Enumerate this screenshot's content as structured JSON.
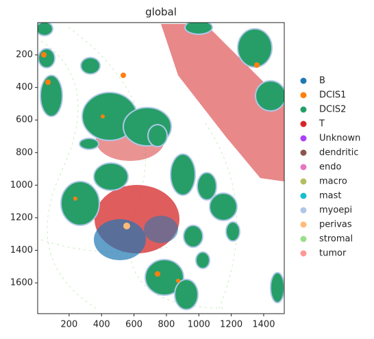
{
  "chart_data": {
    "type": "scatter",
    "title": "global",
    "xlim": [
      6,
      1527
    ],
    "xticks": [
      200,
      400,
      600,
      800,
      1000,
      1200,
      1400
    ],
    "ylim": [
      1789,
      2
    ],
    "yticks": [
      200,
      400,
      600,
      800,
      1000,
      1200,
      1400,
      1600
    ],
    "legend": "right",
    "series": [
      {
        "name": "B",
        "color": "#1f77b4"
      },
      {
        "name": "DCIS1",
        "color": "#ff7f0e"
      },
      {
        "name": "DCIS2",
        "color": "#279e68"
      },
      {
        "name": "T",
        "color": "#d62728"
      },
      {
        "name": "Unknown",
        "color": "#aa40fc"
      },
      {
        "name": "dendritic",
        "color": "#8c564b"
      },
      {
        "name": "endo",
        "color": "#e377c2"
      },
      {
        "name": "macro",
        "color": "#b5bd61"
      },
      {
        "name": "mast",
        "color": "#17becf"
      },
      {
        "name": "myoepi",
        "color": "#aec7e8"
      },
      {
        "name": "perivas",
        "color": "#ffbb78"
      },
      {
        "name": "stromal",
        "color": "#98df8a"
      },
      {
        "name": "tumor",
        "color": "#ff9896"
      }
    ]
  }
}
